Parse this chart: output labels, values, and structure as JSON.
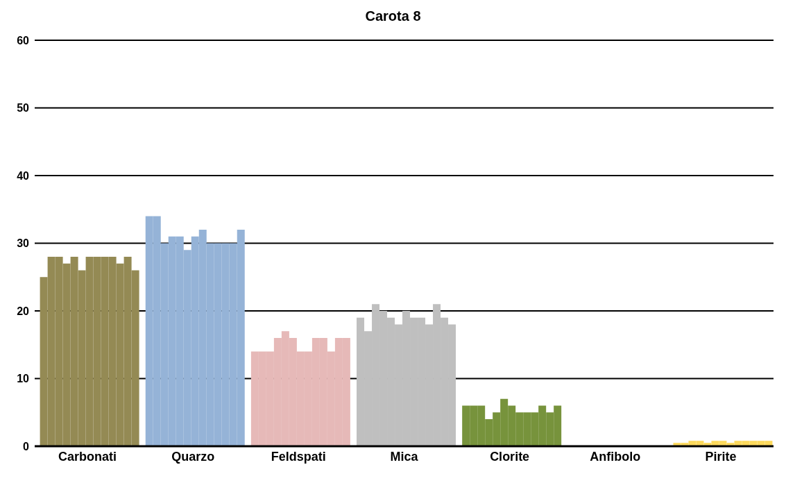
{
  "chart_data": {
    "type": "bar",
    "title": "Carota 8",
    "categories": [
      "Carbonati",
      "Quarzo",
      "Feldspati",
      "Mica",
      "Clorite",
      "Anfibolo",
      "Pirite"
    ],
    "series": [
      {
        "colors": [
          "#948a54",
          "#95b3d7",
          "#e6b9b8",
          "#bfbfbf",
          "#77933c",
          "#8064a2",
          "#fcd95c"
        ],
        "values": [
          25,
          34,
          14,
          19,
          6,
          0,
          0.5
        ]
      },
      {
        "colors": [
          "#948a54",
          "#95b3d7",
          "#e6b9b8",
          "#bfbfbf",
          "#77933c",
          "#8064a2",
          "#fcd95c"
        ],
        "values": [
          28,
          34,
          14,
          17,
          6,
          0,
          0.5
        ]
      },
      {
        "colors": [
          "#948a54",
          "#95b3d7",
          "#e6b9b8",
          "#bfbfbf",
          "#77933c",
          "#8064a2",
          "#fcd95c"
        ],
        "values": [
          28,
          30,
          14,
          21,
          6,
          0,
          0.8
        ]
      },
      {
        "colors": [
          "#948a54",
          "#95b3d7",
          "#e6b9b8",
          "#bfbfbf",
          "#77933c",
          "#8064a2",
          "#fcd95c"
        ],
        "values": [
          27,
          31,
          16,
          20,
          4,
          0,
          0.8
        ]
      },
      {
        "colors": [
          "#948a54",
          "#95b3d7",
          "#e6b9b8",
          "#bfbfbf",
          "#77933c",
          "#8064a2",
          "#fcd95c"
        ],
        "values": [
          28,
          31,
          17,
          19,
          5,
          0,
          0.5
        ]
      },
      {
        "colors": [
          "#948a54",
          "#95b3d7",
          "#e6b9b8",
          "#bfbfbf",
          "#77933c",
          "#8064a2",
          "#fcd95c"
        ],
        "values": [
          26,
          29,
          16,
          18,
          7,
          0,
          0.8
        ]
      },
      {
        "colors": [
          "#948a54",
          "#95b3d7",
          "#e6b9b8",
          "#bfbfbf",
          "#77933c",
          "#8064a2",
          "#fcd95c"
        ],
        "values": [
          28,
          31,
          14,
          20,
          6,
          0,
          0.8
        ]
      },
      {
        "colors": [
          "#948a54",
          "#95b3d7",
          "#e6b9b8",
          "#bfbfbf",
          "#77933c",
          "#8064a2",
          "#fcd95c"
        ],
        "values": [
          28,
          32,
          14,
          19,
          5,
          0,
          0.5
        ]
      },
      {
        "colors": [
          "#948a54",
          "#95b3d7",
          "#e6b9b8",
          "#bfbfbf",
          "#77933c",
          "#8064a2",
          "#fcd95c"
        ],
        "values": [
          28,
          30,
          16,
          19,
          5,
          0,
          0.8
        ]
      },
      {
        "colors": [
          "#948a54",
          "#95b3d7",
          "#e6b9b8",
          "#bfbfbf",
          "#77933c",
          "#8064a2",
          "#fcd95c"
        ],
        "values": [
          28,
          30,
          16,
          18,
          5,
          0,
          0.8
        ]
      },
      {
        "colors": [
          "#948a54",
          "#95b3d7",
          "#e6b9b8",
          "#bfbfbf",
          "#77933c",
          "#8064a2",
          "#fcd95c"
        ],
        "values": [
          27,
          30,
          14,
          21,
          6,
          0,
          0.8
        ]
      },
      {
        "colors": [
          "#948a54",
          "#95b3d7",
          "#e6b9b8",
          "#bfbfbf",
          "#77933c",
          "#8064a2",
          "#fcd95c"
        ],
        "values": [
          28,
          30,
          16,
          19,
          5,
          0,
          0.8
        ]
      },
      {
        "colors": [
          "#948a54",
          "#95b3d7",
          "#e6b9b8",
          "#bfbfbf",
          "#77933c",
          "#8064a2",
          "#fcd95c"
        ],
        "values": [
          26,
          32,
          16,
          18,
          6,
          0,
          0.8
        ]
      }
    ],
    "ylim": [
      0,
      60
    ],
    "yticks": [
      0,
      10,
      20,
      30,
      40,
      50,
      60
    ],
    "grid": "y"
  }
}
